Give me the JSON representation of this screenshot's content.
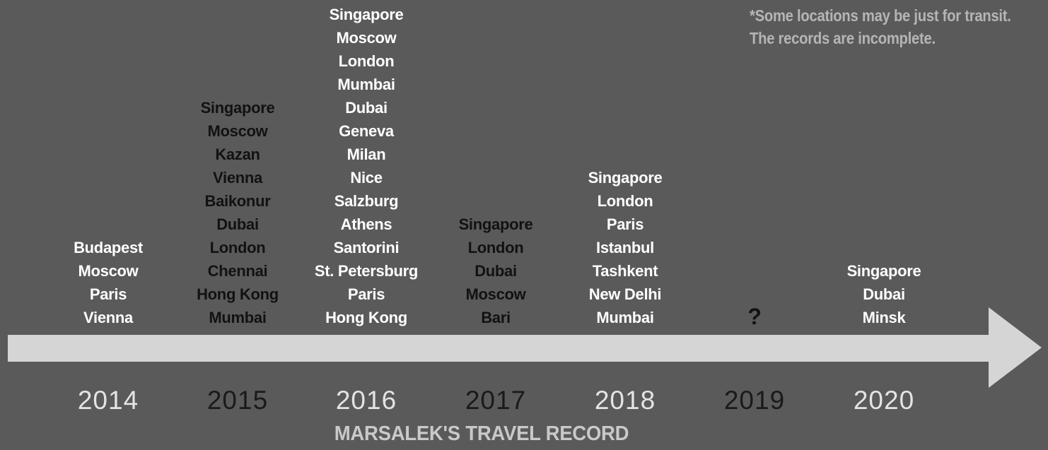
{
  "chart_data": {
    "type": "timeline",
    "title": "MARSALEK'S TRAVEL RECORD",
    "note_lines": [
      "*Some locations may be just for transit.",
      "The records are incomplete."
    ],
    "legend_position": "none",
    "grid": false,
    "columns": [
      {
        "year": "2014",
        "tone": "light",
        "cities": [
          "Budapest",
          "Moscow",
          "Paris",
          "Vienna"
        ]
      },
      {
        "year": "2015",
        "tone": "dark",
        "cities": [
          "Singapore",
          "Moscow",
          "Kazan",
          "Vienna",
          "Baikonur",
          "Dubai",
          "London",
          "Chennai",
          "Hong Kong",
          "Mumbai"
        ]
      },
      {
        "year": "2016",
        "tone": "light",
        "cities": [
          "Singapore",
          "Moscow",
          "London",
          "Mumbai",
          "Dubai",
          "Geneva",
          "Milan",
          "Nice",
          "Salzburg",
          "Athens",
          "Santorini",
          "St. Petersburg",
          "Paris",
          "Hong Kong"
        ]
      },
      {
        "year": "2017",
        "tone": "dark",
        "cities": [
          "Singapore",
          "London",
          "Dubai",
          "Moscow",
          "Bari"
        ]
      },
      {
        "year": "2018",
        "tone": "light",
        "cities": [
          "Singapore",
          "London",
          "Paris",
          "Istanbul",
          "Tashkent",
          "New Delhi",
          "Mumbai"
        ]
      },
      {
        "year": "2019",
        "tone": "dark",
        "cities": [],
        "placeholder": "?"
      },
      {
        "year": "2020",
        "tone": "light",
        "cities": [
          "Singapore",
          "Dubai",
          "Minsk"
        ]
      }
    ],
    "colors": {
      "background": "#5a5a5a",
      "arrow": "#d5d5d5",
      "city_light": "#ffffff",
      "city_dark": "#121212",
      "year_light": "#e4e4e4",
      "year_dark": "#1a1a1a",
      "note": "#b5b5b5",
      "title": "#c9c9c9"
    }
  }
}
